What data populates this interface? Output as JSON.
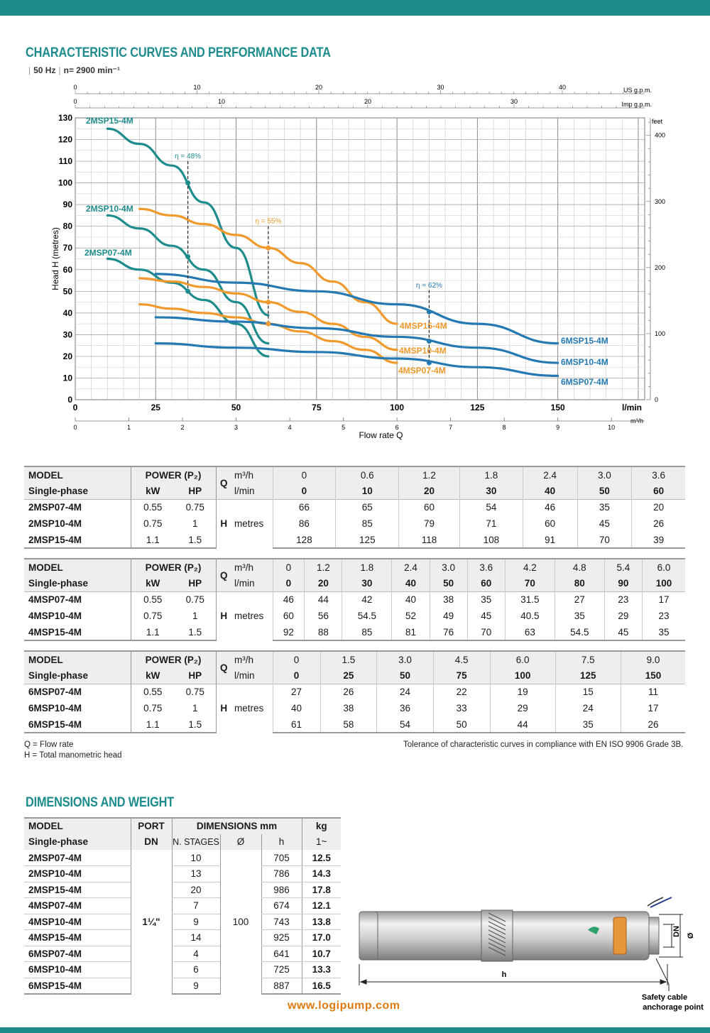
{
  "headings": {
    "curves_title": "CHARACTERISTIC CURVES AND PERFORMANCE DATA",
    "freq": "50 Hz",
    "speed": "n= 2900 min⁻¹",
    "dims_title": "DIMENSIONS AND WEIGHT"
  },
  "colors": {
    "teal": "#1e8c8c",
    "orange": "#f0992c",
    "blue": "#2479b2",
    "grid": "#bbbbbb"
  },
  "chart_data": {
    "type": "line",
    "xlabel": "Flow rate Q",
    "ylabel": "Head H (metres)",
    "x_unit": "l/min",
    "xlim": [
      0,
      177
    ],
    "ylim": [
      0,
      130
    ],
    "grid": true,
    "y_ticks": [
      0,
      10,
      20,
      30,
      40,
      50,
      60,
      70,
      80,
      90,
      100,
      110,
      120,
      130
    ],
    "x_ticks_lmin": [
      0,
      25,
      50,
      75,
      100,
      125,
      150
    ],
    "x_ticks_m3h": [
      0,
      1,
      2,
      3,
      4,
      5,
      6,
      7,
      8,
      9,
      10
    ],
    "m3h_unit": "m³/h",
    "x_ticks_usgpm": [
      0,
      10,
      20,
      30,
      40
    ],
    "usgpm_unit": "US g.p.m.",
    "x_ticks_impgpm": [
      0,
      10,
      20,
      30
    ],
    "impgpm_unit": "Imp g.p.m.",
    "y_ticks_feet": [
      0,
      100,
      200,
      300,
      400
    ],
    "feet_unit": "feet",
    "series": [
      {
        "name": "2MSP07-4M",
        "color": "teal",
        "x": [
          10,
          20,
          30,
          40,
          50,
          60
        ],
        "y": [
          65,
          60,
          54,
          46,
          35,
          20
        ]
      },
      {
        "name": "2MSP10-4M",
        "color": "teal",
        "x": [
          10,
          20,
          30,
          40,
          50,
          60
        ],
        "y": [
          85,
          79,
          71,
          60,
          45,
          26
        ]
      },
      {
        "name": "2MSP15-4M",
        "color": "teal",
        "x": [
          10,
          20,
          30,
          40,
          50,
          60
        ],
        "y": [
          125,
          118,
          108,
          91,
          70,
          39
        ]
      },
      {
        "name": "4MSP07-4M",
        "color": "orange",
        "x": [
          20,
          30,
          40,
          50,
          60,
          70,
          80,
          90,
          100
        ],
        "y": [
          44,
          42,
          40,
          38,
          35,
          31.5,
          27,
          23,
          17
        ]
      },
      {
        "name": "4MSP10-4M",
        "color": "orange",
        "x": [
          20,
          30,
          40,
          50,
          60,
          70,
          80,
          90,
          100
        ],
        "y": [
          56,
          54.5,
          52,
          49,
          45,
          40.5,
          35,
          29,
          23
        ]
      },
      {
        "name": "4MSP15-4M",
        "color": "orange",
        "x": [
          20,
          30,
          40,
          50,
          60,
          70,
          80,
          90,
          100
        ],
        "y": [
          88,
          85,
          81,
          76,
          70,
          63,
          54.5,
          45,
          35
        ]
      },
      {
        "name": "6MSP07-4M",
        "color": "blue",
        "x": [
          25,
          50,
          75,
          100,
          125,
          150
        ],
        "y": [
          26,
          24,
          22,
          19,
          15,
          11
        ]
      },
      {
        "name": "6MSP10-4M",
        "color": "blue",
        "x": [
          25,
          50,
          75,
          100,
          125,
          150
        ],
        "y": [
          38,
          36,
          33,
          29,
          24,
          17
        ]
      },
      {
        "name": "6MSP15-4M",
        "color": "blue",
        "x": [
          25,
          50,
          75,
          100,
          125,
          150
        ],
        "y": [
          58,
          54,
          50,
          44,
          35,
          26
        ]
      }
    ],
    "efficiency": [
      {
        "label": "η = 48%",
        "x": 35,
        "points": [
          100,
          66,
          50
        ]
      },
      {
        "label": "η = 55%",
        "x": 60,
        "points": [
          70,
          45,
          35
        ]
      },
      {
        "label": "η = 62%",
        "x": 110,
        "points": [
          40.5,
          27,
          17
        ]
      }
    ]
  },
  "tables": [
    {
      "header": {
        "model": "MODEL",
        "phase": "Single-phase",
        "power": "POWER (P₂)",
        "kw": "kW",
        "hp": "HP",
        "q": "Q",
        "m3h": "m³/h",
        "lmin": "l/min"
      },
      "q_m3h": [
        "0",
        "0.6",
        "1.2",
        "1.8",
        "2.4",
        "3.0",
        "3.6"
      ],
      "q_lmin": [
        "0",
        "10",
        "20",
        "30",
        "40",
        "50",
        "60"
      ],
      "h_label": "H",
      "metres": "metres",
      "rows": [
        {
          "model": "2MSP07-4M",
          "kw": "0.55",
          "hp": "0.75",
          "h": [
            "66",
            "65",
            "60",
            "54",
            "46",
            "35",
            "20"
          ]
        },
        {
          "model": "2MSP10-4M",
          "kw": "0.75",
          "hp": "1",
          "h": [
            "86",
            "85",
            "79",
            "71",
            "60",
            "45",
            "26"
          ]
        },
        {
          "model": "2MSP15-4M",
          "kw": "1.1",
          "hp": "1.5",
          "h": [
            "128",
            "125",
            "118",
            "108",
            "91",
            "70",
            "39"
          ]
        }
      ]
    },
    {
      "header": {
        "model": "MODEL",
        "phase": "Single-phase",
        "power": "POWER (P₂)",
        "kw": "kW",
        "hp": "HP",
        "q": "Q",
        "m3h": "m³/h",
        "lmin": "l/min"
      },
      "q_m3h": [
        "0",
        "1.2",
        "1.8",
        "2.4",
        "3.0",
        "3.6",
        "4.2",
        "4.8",
        "5.4",
        "6.0"
      ],
      "q_lmin": [
        "0",
        "20",
        "30",
        "40",
        "50",
        "60",
        "70",
        "80",
        "90",
        "100"
      ],
      "h_label": "H",
      "metres": "metres",
      "rows": [
        {
          "model": "4MSP07-4M",
          "kw": "0.55",
          "hp": "0.75",
          "h": [
            "46",
            "44",
            "42",
            "40",
            "38",
            "35",
            "31.5",
            "27",
            "23",
            "17"
          ]
        },
        {
          "model": "4MSP10-4M",
          "kw": "0.75",
          "hp": "1",
          "h": [
            "60",
            "56",
            "54.5",
            "52",
            "49",
            "45",
            "40.5",
            "35",
            "29",
            "23"
          ]
        },
        {
          "model": "4MSP15-4M",
          "kw": "1.1",
          "hp": "1.5",
          "h": [
            "92",
            "88",
            "85",
            "81",
            "76",
            "70",
            "63",
            "54.5",
            "45",
            "35"
          ]
        }
      ]
    },
    {
      "header": {
        "model": "MODEL",
        "phase": "Single-phase",
        "power": "POWER (P₂)",
        "kw": "kW",
        "hp": "HP",
        "q": "Q",
        "m3h": "m³/h",
        "lmin": "l/min"
      },
      "q_m3h": [
        "0",
        "1.5",
        "3.0",
        "4.5",
        "6.0",
        "7.5",
        "9.0"
      ],
      "q_lmin": [
        "0",
        "25",
        "50",
        "75",
        "100",
        "125",
        "150"
      ],
      "h_label": "H",
      "metres": "metres",
      "rows": [
        {
          "model": "6MSP07-4M",
          "kw": "0.55",
          "hp": "0.75",
          "h": [
            "27",
            "26",
            "24",
            "22",
            "19",
            "15",
            "11"
          ]
        },
        {
          "model": "6MSP10-4M",
          "kw": "0.75",
          "hp": "1",
          "h": [
            "40",
            "38",
            "36",
            "33",
            "29",
            "24",
            "17"
          ]
        },
        {
          "model": "6MSP15-4M",
          "kw": "1.1",
          "hp": "1.5",
          "h": [
            "61",
            "58",
            "54",
            "50",
            "44",
            "35",
            "26"
          ]
        }
      ]
    }
  ],
  "notes": {
    "q": "Q = Flow rate",
    "h": "H = Total manometric head",
    "tolerance": "Tolerance of characteristic curves in compliance with EN ISO 9906 Grade 3B."
  },
  "dimensions": {
    "header": {
      "model": "MODEL",
      "phase": "Single-phase",
      "port": "PORT",
      "dn": "DN",
      "dims": "DIMENSIONS mm",
      "stages": "N. STAGES",
      "dia": "Ø",
      "h": "h",
      "kg": "kg",
      "kg_sub": "1~"
    },
    "port_value": "1¼\"",
    "dia_value": "100",
    "rows": [
      {
        "model": "2MSP07-4M",
        "stages": "10",
        "h": "705",
        "kg": "12.5"
      },
      {
        "model": "2MSP10-4M",
        "stages": "13",
        "h": "786",
        "kg": "14.3"
      },
      {
        "model": "2MSP15-4M",
        "stages": "20",
        "h": "986",
        "kg": "17.8"
      },
      {
        "model": "4MSP07-4M",
        "stages": "7",
        "h": "674",
        "kg": "12.1"
      },
      {
        "model": "4MSP10-4M",
        "stages": "9",
        "h": "743",
        "kg": "13.8"
      },
      {
        "model": "4MSP15-4M",
        "stages": "14",
        "h": "925",
        "kg": "17.0"
      },
      {
        "model": "6MSP07-4M",
        "stages": "4",
        "h": "641",
        "kg": "10.7"
      },
      {
        "model": "6MSP10-4M",
        "stages": "6",
        "h": "725",
        "kg": "13.3"
      },
      {
        "model": "6MSP15-4M",
        "stages": "9",
        "h": "887",
        "kg": "16.5"
      }
    ]
  },
  "drawing": {
    "h_label": "h",
    "dn_label": "DN",
    "dia_label": "Ø",
    "cable_label_1": "Safety cable",
    "cable_label_2": "anchorage point"
  },
  "footer": {
    "url": "www.logipump.com"
  }
}
